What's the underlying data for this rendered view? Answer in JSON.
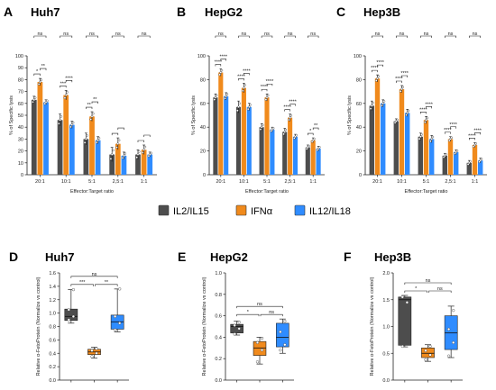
{
  "colors": {
    "il2": "#4d4d4d",
    "ifn": "#f08a1c",
    "il12": "#2f8cff",
    "axis": "#222222"
  },
  "legend": [
    {
      "label": "IL2/IL15",
      "color": "#4d4d4d"
    },
    {
      "label": "IFNα",
      "color": "#f08a1c"
    },
    {
      "label": "IL12/IL18",
      "color": "#2f8cff"
    }
  ],
  "chart_data": [
    {
      "panel": "A",
      "title": "Huh7",
      "type": "bar",
      "xlabel": "Effector:Target ratio",
      "ylabel": "% of Specific lysis",
      "ylim": [
        0,
        100
      ],
      "yticks": [
        "0",
        "10",
        "20",
        "30",
        "40",
        "50",
        "60",
        "70",
        "80",
        "90",
        "100"
      ],
      "categories": [
        "20:1",
        "10:1",
        "5:1",
        "2,5:1",
        "1:1"
      ],
      "series": [
        {
          "name": "IL2/IL15",
          "values": [
            63,
            46,
            30,
            17,
            17
          ],
          "errors": [
            3,
            5,
            5,
            6,
            4
          ]
        },
        {
          "name": "IFNα",
          "values": [
            78,
            67,
            49,
            26,
            21
          ],
          "errors": [
            3,
            4,
            4,
            5,
            4
          ]
        },
        {
          "name": "IL12/IL18",
          "values": [
            61,
            42,
            29,
            16,
            17
          ],
          "errors": [
            2,
            3,
            3,
            3,
            2
          ]
        }
      ],
      "sig_row1": [
        "*",
        "***",
        "**",
        "",
        ""
      ],
      "sig_row2": [
        "**",
        "****",
        "**",
        "",
        ""
      ],
      "sig_top": [
        "ns",
        "ns",
        "ns",
        "ns",
        "ns"
      ]
    },
    {
      "panel": "B",
      "title": "HepG2",
      "type": "bar",
      "xlabel": "Effector:Target ratio",
      "ylabel": "% of Specific lysis",
      "ylim": [
        0,
        100
      ],
      "yticks": [
        "0",
        "20",
        "40",
        "60",
        "80",
        "100"
      ],
      "categories": [
        "20:1",
        "10:1",
        "5:1",
        "2,5:1",
        "1:1"
      ],
      "series": [
        {
          "name": "IL2/IL15",
          "values": [
            65,
            57,
            40,
            36,
            23
          ],
          "errors": [
            3,
            5,
            3,
            3,
            2
          ]
        },
        {
          "name": "IFNα",
          "values": [
            86,
            73,
            65,
            48,
            29
          ],
          "errors": [
            3,
            4,
            3,
            3,
            2
          ]
        },
        {
          "name": "IL12/IL18",
          "values": [
            66,
            57,
            38,
            32,
            22
          ],
          "errors": [
            3,
            3,
            2,
            2,
            2
          ]
        }
      ],
      "sig_row1": [
        "****",
        "****",
        "****",
        "****",
        "*"
      ],
      "sig_row2": [
        "****",
        "****",
        "****",
        "****",
        "**"
      ],
      "sig_top": [
        "ns",
        "ns",
        "ns",
        "ns",
        "ns"
      ]
    },
    {
      "panel": "C",
      "title": "Hep3B",
      "type": "bar",
      "xlabel": "Effector:Target ratio",
      "ylabel": "% of Specific lysis",
      "ylim": [
        0,
        100
      ],
      "yticks": [
        "0",
        "20",
        "40",
        "60",
        "80",
        "100"
      ],
      "categories": [
        "20:1",
        "10:1",
        "5:1",
        "2,5:1",
        "1:1"
      ],
      "series": [
        {
          "name": "IL2/IL15",
          "values": [
            58,
            45,
            32,
            16,
            10
          ],
          "errors": [
            4,
            2,
            3,
            2,
            2
          ]
        },
        {
          "name": "IFNα",
          "values": [
            81,
            72,
            46,
            30,
            25
          ],
          "errors": [
            3,
            3,
            3,
            2,
            2
          ]
        },
        {
          "name": "IL12/IL18",
          "values": [
            60,
            52,
            30,
            19,
            12
          ],
          "errors": [
            3,
            3,
            3,
            2,
            2
          ]
        }
      ],
      "sig_row1": [
        "****",
        "****",
        "****",
        "****",
        "****"
      ],
      "sig_row2": [
        "****",
        "****",
        "****",
        "****",
        "****"
      ],
      "sig_top": [
        "ns",
        "ns",
        "ns",
        "ns",
        "ns"
      ]
    },
    {
      "panel": "D",
      "title": "Huh7",
      "type": "box",
      "ylabel": "Relative α-FetoProtein (Normalize vs control)",
      "ylim": [
        0,
        1.6
      ],
      "yticks": [
        "0.0",
        "0.2",
        "0.4",
        "0.6",
        "0.8",
        "1.0",
        "1.2",
        "1.4",
        "1.6"
      ],
      "series": [
        {
          "name": "IL2/IL15",
          "min": 0.85,
          "q1": 0.89,
          "median": 0.95,
          "q3": 1.06,
          "max": 1.35,
          "points": [
            0.9,
            0.95,
            1.05,
            1.35
          ]
        },
        {
          "name": "IFNα",
          "min": 0.33,
          "q1": 0.38,
          "median": 0.42,
          "q3": 0.46,
          "max": 0.49,
          "points": [
            0.35,
            0.4,
            0.44,
            0.47
          ]
        },
        {
          "name": "IL12/IL18",
          "min": 0.72,
          "q1": 0.76,
          "median": 0.87,
          "q3": 0.97,
          "max": 1.36,
          "points": [
            0.75,
            0.85,
            0.95,
            1.36
          ]
        }
      ],
      "sig": {
        "a": "***",
        "b": "**",
        "top": "ns"
      }
    },
    {
      "panel": "E",
      "title": "HepG2",
      "type": "box",
      "ylabel": "Relative α-FetoProtein (Normalize vs control)",
      "ylim": [
        0,
        1.0
      ],
      "yticks": [
        "0.0",
        "0.2",
        "0.4",
        "0.6",
        "0.8",
        "1.0"
      ],
      "series": [
        {
          "name": "IL2/IL15",
          "min": 0.42,
          "q1": 0.44,
          "median": 0.5,
          "q3": 0.52,
          "max": 0.55,
          "points": [
            0.43,
            0.48,
            0.51,
            0.54
          ]
        },
        {
          "name": "IFNα",
          "min": 0.15,
          "q1": 0.23,
          "median": 0.3,
          "q3": 0.36,
          "max": 0.4,
          "points": [
            0.17,
            0.28,
            0.35,
            0.39
          ]
        },
        {
          "name": "IL12/IL18",
          "min": 0.25,
          "q1": 0.31,
          "median": 0.4,
          "q3": 0.53,
          "max": 0.57,
          "points": [
            0.28,
            0.33,
            0.45,
            0.55
          ]
        }
      ],
      "sig": {
        "a": "*",
        "b": "ns",
        "top": "ns"
      }
    },
    {
      "panel": "F",
      "title": "Hep3B",
      "type": "box",
      "ylabel": "Relative α-FetoProtein (Normalize vs control)",
      "ylim": [
        0,
        2.0
      ],
      "yticks": [
        "0.0",
        "0.5",
        "1.0",
        "1.5",
        "2.0"
      ],
      "series": [
        {
          "name": "IL2/IL15",
          "min": 0.62,
          "q1": 0.65,
          "median": 1.5,
          "q3": 1.55,
          "max": 1.58,
          "points": [
            0.63,
            1.45,
            1.55
          ]
        },
        {
          "name": "IFNα",
          "min": 0.35,
          "q1": 0.42,
          "median": 0.5,
          "q3": 0.6,
          "max": 0.66,
          "points": [
            0.38,
            0.47,
            0.55,
            0.63
          ]
        },
        {
          "name": "IL12/IL18",
          "min": 0.42,
          "q1": 0.57,
          "median": 0.88,
          "q3": 1.2,
          "max": 1.38,
          "points": [
            0.45,
            0.7,
            0.95,
            1.3
          ]
        }
      ],
      "sig": {
        "a": "*",
        "b": "ns",
        "top": "ns"
      }
    }
  ]
}
